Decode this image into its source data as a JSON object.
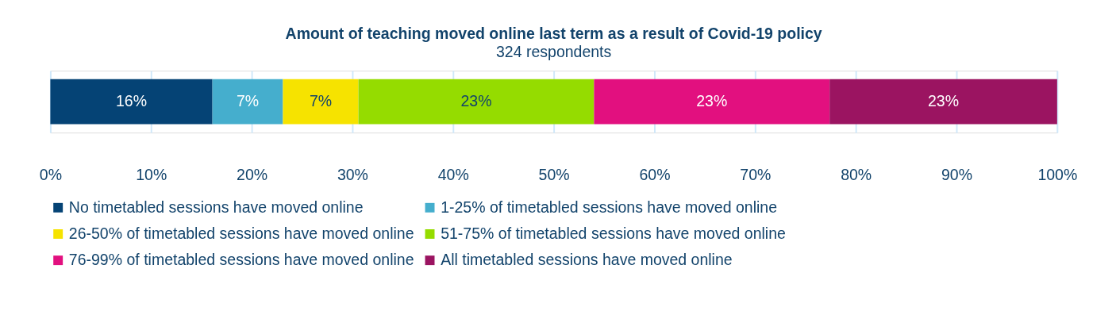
{
  "chart_data": {
    "type": "bar",
    "orientation": "horizontal",
    "stacked": true,
    "title": "Amount of teaching moved online last term as a result of Covid-19 policy",
    "subtitle": "324 respondents",
    "categories": [
      null
    ],
    "series": [
      {
        "name": "No timetabled sessions have moved online",
        "color": "#054375",
        "values": [
          16.1
        ],
        "value_labels": [
          "16%"
        ]
      },
      {
        "name": "1-25% of timetabled sessions have moved online",
        "color": "#45aecd",
        "values": [
          7.0
        ],
        "value_labels": [
          "7%"
        ]
      },
      {
        "name": "26-50% of timetabled sessions have moved online",
        "color": "#f6e300",
        "values": [
          7.5
        ],
        "value_labels": [
          "7%"
        ]
      },
      {
        "name": "51-75% of timetabled sessions have moved online",
        "color": "#95dc00",
        "values": [
          23.4
        ],
        "value_labels": [
          "23%"
        ]
      },
      {
        "name": "76-99% of timetabled sessions have moved online",
        "color": "#e2107f",
        "values": [
          23.4
        ],
        "value_labels": [
          "23%"
        ]
      },
      {
        "name": "All timetabled sessions have moved online",
        "color": "#9b1461",
        "values": [
          22.6
        ],
        "value_labels": [
          "23%"
        ]
      }
    ],
    "xlim": [
      0,
      100
    ],
    "xticks": [
      {
        "value": 0,
        "label": "0%"
      },
      {
        "value": 10,
        "label": "10%"
      },
      {
        "value": 20,
        "label": "20%"
      },
      {
        "value": 30,
        "label": "30%"
      },
      {
        "value": 40,
        "label": "40%"
      },
      {
        "value": 50,
        "label": "50%"
      },
      {
        "value": 60,
        "label": "60%"
      },
      {
        "value": 70,
        "label": "70%"
      },
      {
        "value": 80,
        "label": "80%"
      },
      {
        "value": 90,
        "label": "90%"
      },
      {
        "value": 100,
        "label": "100%"
      }
    ],
    "grid": "x",
    "legend": "bottom"
  }
}
